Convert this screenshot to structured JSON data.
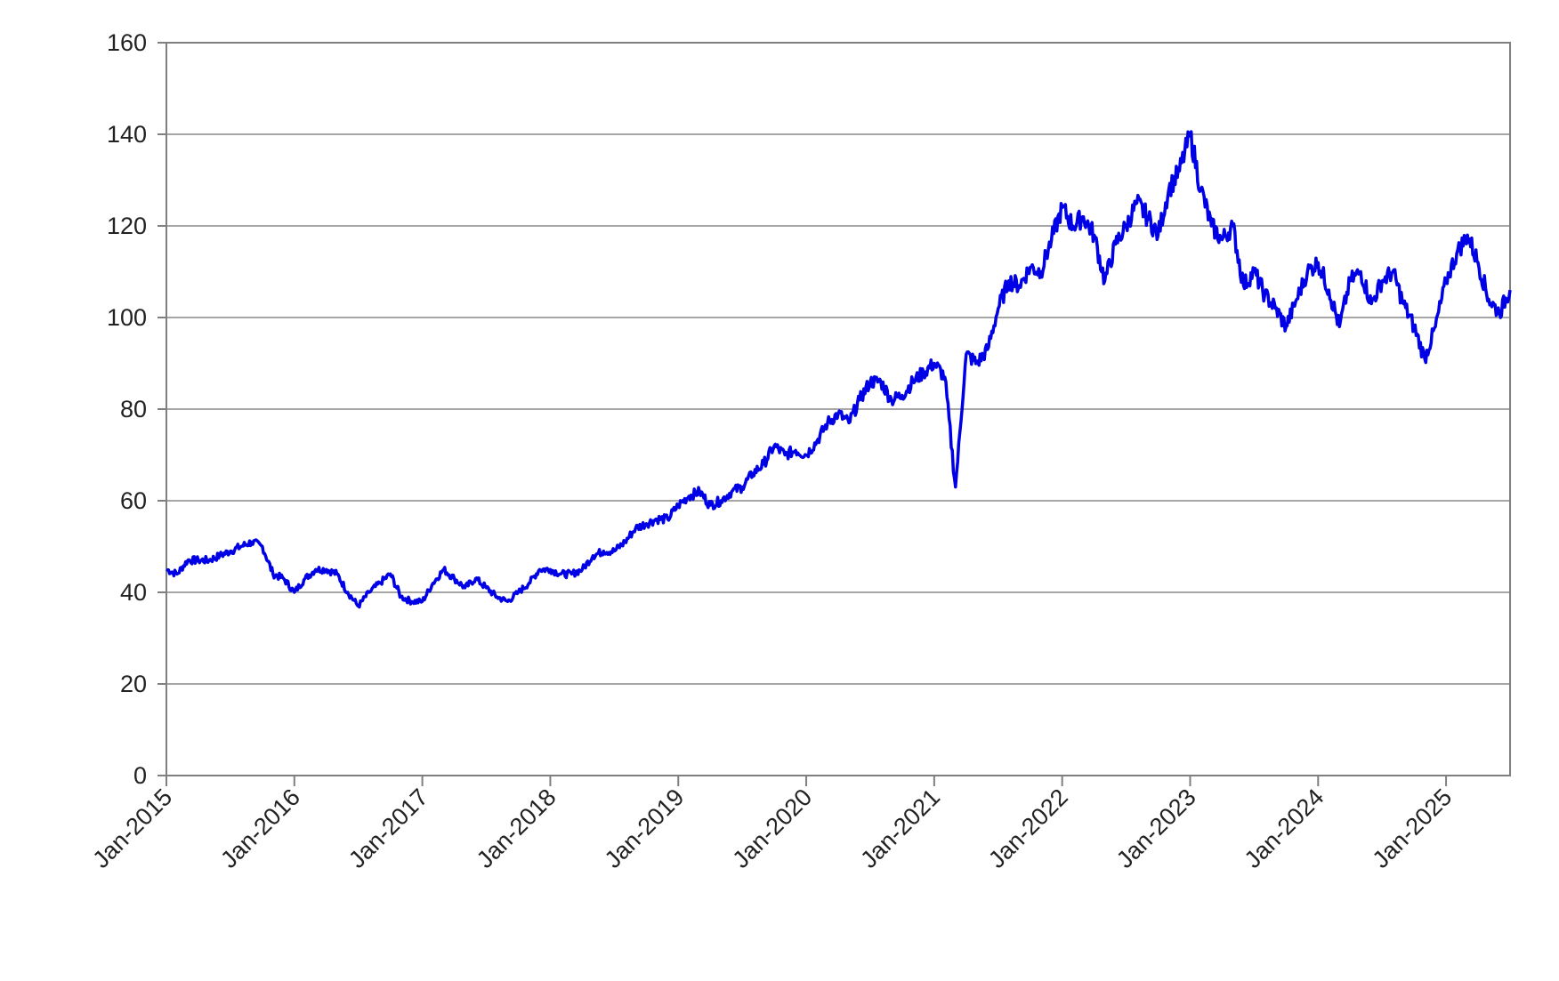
{
  "chart_data": {
    "type": "line",
    "title": "",
    "xlabel": "",
    "ylabel": "",
    "ylim": [
      0,
      160
    ],
    "y_ticks": [
      0,
      20,
      40,
      60,
      80,
      100,
      120,
      140,
      160
    ],
    "x_range": [
      "2015-01",
      "2025-07"
    ],
    "x_tick_labels": [
      "Jan-2015",
      "Jan-2016",
      "Jan-2017",
      "Jan-2018",
      "Jan-2019",
      "Jan-2020",
      "Jan-2021",
      "Jan-2022",
      "Jan-2023",
      "Jan-2024",
      "Jan-2025"
    ],
    "grid": "horizontal",
    "legend": "none",
    "line_color": "#0000e6",
    "series": [
      {
        "values": [
          [
            "2015-01",
            45
          ],
          [
            "2015-02",
            44
          ],
          [
            "2015-03",
            47
          ],
          [
            "2015-04",
            47
          ],
          [
            "2015-05",
            47
          ],
          [
            "2015-06",
            48
          ],
          [
            "2015-07",
            49
          ],
          [
            "2015-08",
            50
          ],
          [
            "2015-09",
            51
          ],
          [
            "2015-10",
            50
          ],
          [
            "2015-11",
            44
          ],
          [
            "2015-12",
            43
          ],
          [
            "2016-01",
            40
          ],
          [
            "2016-02",
            43
          ],
          [
            "2016-03",
            45
          ],
          [
            "2016-04",
            45
          ],
          [
            "2016-05",
            44
          ],
          [
            "2016-06",
            40
          ],
          [
            "2016-07",
            37
          ],
          [
            "2016-08",
            40
          ],
          [
            "2016-09",
            42
          ],
          [
            "2016-10",
            44
          ],
          [
            "2016-11",
            39
          ],
          [
            "2016-12",
            38
          ],
          [
            "2017-01",
            38
          ],
          [
            "2017-02",
            42
          ],
          [
            "2017-03",
            45
          ],
          [
            "2017-04",
            43
          ],
          [
            "2017-05",
            41
          ],
          [
            "2017-06",
            43
          ],
          [
            "2017-07",
            41
          ],
          [
            "2017-08",
            39
          ],
          [
            "2017-09",
            38
          ],
          [
            "2017-10",
            40
          ],
          [
            "2017-11",
            42
          ],
          [
            "2017-12",
            45
          ],
          [
            "2018-01",
            45
          ],
          [
            "2018-02",
            44
          ],
          [
            "2018-03",
            44
          ],
          [
            "2018-04",
            45
          ],
          [
            "2018-05",
            48
          ],
          [
            "2018-06",
            49
          ],
          [
            "2018-07",
            49
          ],
          [
            "2018-08",
            51
          ],
          [
            "2018-09",
            54
          ],
          [
            "2018-10",
            55
          ],
          [
            "2018-11",
            56
          ],
          [
            "2018-12",
            56
          ],
          [
            "2019-01",
            59
          ],
          [
            "2019-02",
            61
          ],
          [
            "2019-03",
            62
          ],
          [
            "2019-04",
            59
          ],
          [
            "2019-05",
            60
          ],
          [
            "2019-06",
            62
          ],
          [
            "2019-07",
            63
          ],
          [
            "2019-08",
            66
          ],
          [
            "2019-09",
            68
          ],
          [
            "2019-10",
            72
          ],
          [
            "2019-11",
            70
          ],
          [
            "2019-12",
            71
          ],
          [
            "2020-01",
            70
          ],
          [
            "2020-02",
            73
          ],
          [
            "2020-03",
            77
          ],
          [
            "2020-04",
            79
          ],
          [
            "2020-05",
            77
          ],
          [
            "2020-06",
            82
          ],
          [
            "2020-07",
            86
          ],
          [
            "2020-08",
            86
          ],
          [
            "2020-09",
            82
          ],
          [
            "2020-10",
            83
          ],
          [
            "2020-11",
            86
          ],
          [
            "2020-12",
            88
          ],
          [
            "2021-01",
            90
          ],
          [
            "2021-02",
            87
          ],
          [
            "2021-03",
            63
          ],
          [
            "2021-04",
            92
          ],
          [
            "2021-05",
            90
          ],
          [
            "2021-06",
            93
          ],
          [
            "2021-07",
            102
          ],
          [
            "2021-08",
            108
          ],
          [
            "2021-09",
            107
          ],
          [
            "2021-10",
            111
          ],
          [
            "2021-11",
            110
          ],
          [
            "2021-12",
            117
          ],
          [
            "2022-01",
            124
          ],
          [
            "2022-02",
            120
          ],
          [
            "2022-03",
            122
          ],
          [
            "2022-04",
            118
          ],
          [
            "2022-05",
            108
          ],
          [
            "2022-06",
            116
          ],
          [
            "2022-07",
            120
          ],
          [
            "2022-08",
            125
          ],
          [
            "2022-09",
            122
          ],
          [
            "2022-10",
            118
          ],
          [
            "2022-11",
            128
          ],
          [
            "2022-12",
            132
          ],
          [
            "2023-01",
            140
          ],
          [
            "2023-02",
            128
          ],
          [
            "2023-03",
            120
          ],
          [
            "2023-04",
            117
          ],
          [
            "2023-05",
            120
          ],
          [
            "2023-06",
            107
          ],
          [
            "2023-07",
            110
          ],
          [
            "2023-08",
            105
          ],
          [
            "2023-09",
            102
          ],
          [
            "2023-10",
            98
          ],
          [
            "2023-11",
            104
          ],
          [
            "2023-12",
            110
          ],
          [
            "2024-01",
            112
          ],
          [
            "2024-02",
            106
          ],
          [
            "2024-03",
            98
          ],
          [
            "2024-04",
            108
          ],
          [
            "2024-05",
            110
          ],
          [
            "2024-06",
            103
          ],
          [
            "2024-07",
            108
          ],
          [
            "2024-08",
            110
          ],
          [
            "2024-09",
            103
          ],
          [
            "2024-10",
            98
          ],
          [
            "2024-11",
            91
          ],
          [
            "2024-12",
            98
          ],
          [
            "2025-01",
            108
          ],
          [
            "2025-02",
            114
          ],
          [
            "2025-03",
            118
          ],
          [
            "2025-04",
            112
          ],
          [
            "2025-05",
            104
          ],
          [
            "2025-06",
            101
          ],
          [
            "2025-07",
            106
          ]
        ]
      }
    ]
  }
}
